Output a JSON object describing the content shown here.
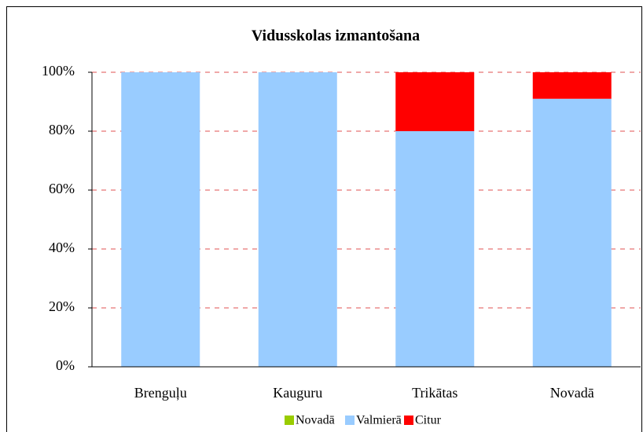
{
  "chart_data": {
    "type": "stacked_bar",
    "title": "Vidusskolas izmantošana",
    "categories": [
      "Brenguļu",
      "Kauguru",
      "Trikātas",
      "Novadā"
    ],
    "series": [
      {
        "name": "Novadā",
        "color": "#99cc00",
        "values": [
          0,
          0,
          0,
          0
        ]
      },
      {
        "name": "Valmierā",
        "color": "#99ccff",
        "values": [
          100,
          100,
          80,
          91
        ]
      },
      {
        "name": "Citur",
        "color": "#ff0000",
        "values": [
          0,
          0,
          20,
          9
        ]
      }
    ],
    "ylim": [
      0,
      100
    ],
    "yticks": [
      {
        "value": 0,
        "label": "0%"
      },
      {
        "value": 20,
        "label": "20%"
      },
      {
        "value": 40,
        "label": "40%"
      },
      {
        "value": 60,
        "label": "60%"
      },
      {
        "value": 80,
        "label": "80%"
      },
      {
        "value": 100,
        "label": "100%"
      }
    ],
    "grid": true,
    "legend": "bottom"
  }
}
